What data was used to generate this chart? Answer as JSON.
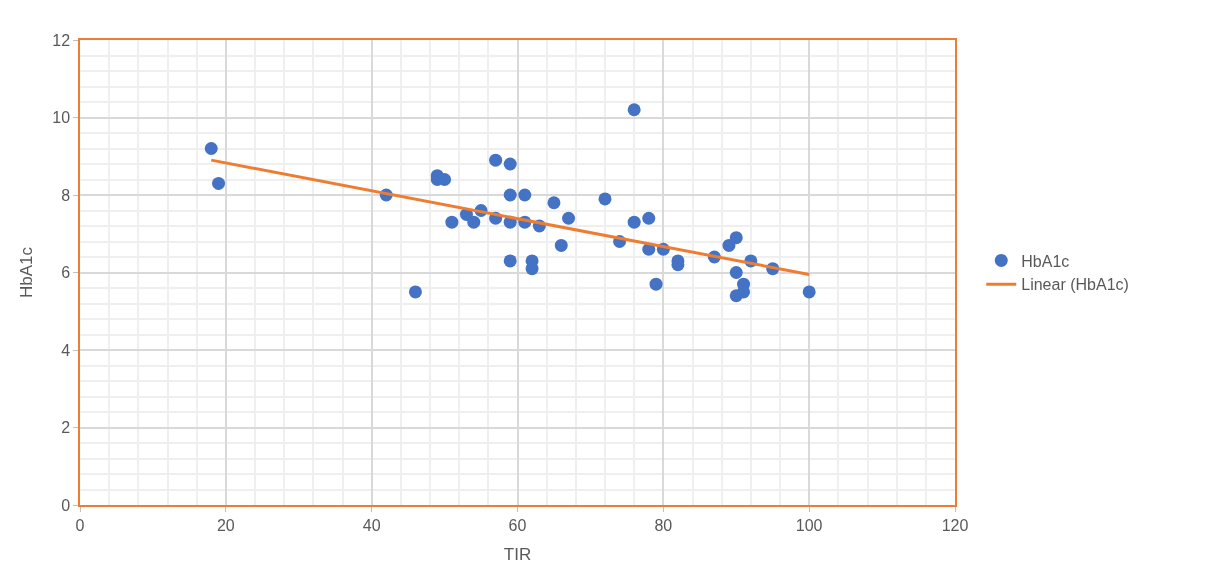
{
  "chart_data": {
    "type": "scatter",
    "xlabel": "TIR",
    "ylabel": "HbA1c",
    "xlim": [
      0,
      120
    ],
    "xticks": [
      0,
      20,
      40,
      60,
      80,
      100,
      120
    ],
    "ylim": [
      0,
      12
    ],
    "yticks": [
      0,
      2,
      4,
      6,
      8,
      10,
      12
    ],
    "grid": true,
    "legend": "right",
    "series": [
      {
        "name": "HbA1c",
        "color": "#4472c4",
        "marker": "circle",
        "x": [
          18,
          19,
          42,
          46,
          49,
          49,
          50,
          51,
          53,
          54,
          55,
          57,
          57,
          59,
          59,
          59,
          59,
          61,
          61,
          62,
          62,
          63,
          65,
          66,
          67,
          72,
          74,
          76,
          76,
          78,
          78,
          79,
          80,
          82,
          82,
          87,
          89,
          90,
          90,
          90,
          91,
          91,
          92,
          95,
          100
        ],
        "values": [
          9.2,
          8.3,
          8.0,
          5.5,
          8.5,
          8.4,
          8.4,
          7.3,
          7.5,
          7.3,
          7.6,
          8.9,
          7.4,
          8.8,
          8.0,
          7.3,
          6.3,
          8.0,
          7.3,
          6.3,
          6.1,
          7.2,
          7.8,
          6.7,
          7.4,
          7.9,
          6.8,
          10.2,
          7.3,
          7.4,
          6.6,
          5.7,
          6.6,
          6.3,
          6.2,
          6.4,
          6.7,
          6.9,
          6.0,
          5.4,
          5.7,
          5.5,
          6.3,
          6.1,
          5.5
        ]
      },
      {
        "name": "Linear (HbA1c)",
        "type": "line",
        "color": "#ed7d31",
        "marker": "none",
        "x": [
          18,
          100
        ],
        "values": [
          8.9,
          5.95
        ]
      }
    ]
  }
}
